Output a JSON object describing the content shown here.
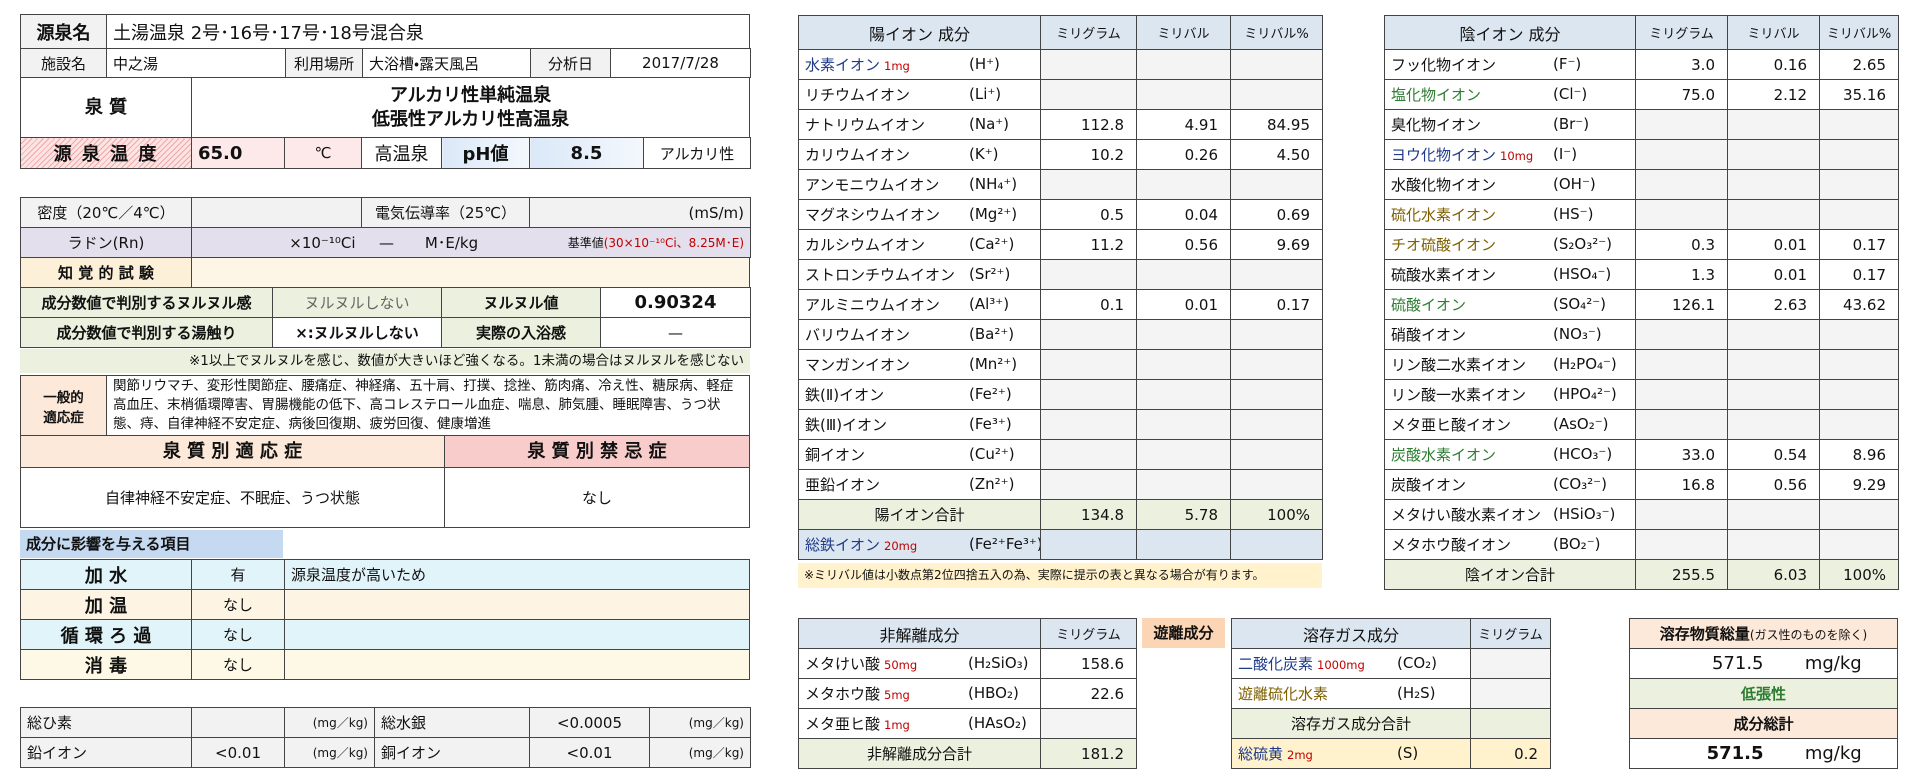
{
  "basic": {
    "source_label": "源泉名",
    "source_name": "土湯温泉 2号･16号･17号･18号混合泉",
    "facility_label": "施設名",
    "facility": "中之湯",
    "use_label": "利用場所",
    "use": "大浴槽・露天風呂",
    "date_label": "分析日",
    "date": "2017/7/28",
    "quality_label": "泉 質",
    "quality": [
      "アルカリ性単純温泉",
      "低張性アルカリ性高温泉"
    ],
    "temp_label": "源 泉 温 度",
    "temp": "65.0",
    "temp_unit": "℃",
    "temp_class": "高温泉",
    "ph_label": "pH値",
    "ph": "8.5",
    "ph_class": "アルカリ性"
  },
  "physical": {
    "density_label": "密度（20℃／4℃）",
    "conductivity_label": "電気伝導率（25℃）",
    "conductivity_unit": "(mS/m)",
    "radon_label": "ラドン(Rn)",
    "radon_unit": "×10⁻¹⁰Ci",
    "radon_value": "—",
    "radon_unit2": "M･E/kg",
    "radon_standard_label": "基準値",
    "radon_standard": "(30×10⁻¹⁰Ci、8.25M･E)",
    "sensory_label": "知 覚 的 試 験",
    "slime_label": "成分数値で判別するヌルヌル感",
    "slime": "ヌルヌルしない",
    "slime_value_label": "ヌルヌル値",
    "slime_value": "0.90324",
    "touch_label": "成分数値で判別する湯触り",
    "touch": "×:ヌルヌルしない",
    "actual_label": "実際の入浴感",
    "actual": "—",
    "note": "※1以上でヌルヌルを感じ、数値が大きいほど強くなる。1未満の場合はヌルヌルを感じない"
  },
  "indications": {
    "general_label": [
      "一般的",
      "適応症"
    ],
    "general": "関節リウマチ、変形性関節症、腰痛症、神経痛、五十肩、打撲、捻挫、筋肉痛、冷え性、糖尿病、軽症高血圧、末梢循環障害、胃腸機能の低下、高コレステロール血症、喘息、肺気腫、睡眠障害、うつ状態、痔、自律神経不安定症、病後回復期、疲労回復、健康増進",
    "specific_label": "泉 質 別 適 応 症",
    "contra_label": "泉 質 別 禁 忌 症",
    "specific": "自律神経不安定症、不眠症、うつ状態",
    "contra": "なし"
  },
  "influence": {
    "title": "成分に影響を与える項目",
    "rows": [
      [
        "加 水",
        "有",
        "源泉温度が高いため"
      ],
      [
        "加 温",
        "なし"
      ],
      [
        "循 環 ろ 過",
        "なし"
      ],
      [
        "消 毒",
        "なし"
      ]
    ]
  },
  "trace": [
    {
      "label": "総ひ素",
      "unit": "(mg／kg)"
    },
    {
      "label": "総水銀",
      "value": "<0.0005",
      "unit": "(mg／kg)"
    },
    {
      "label": "鉛イオン",
      "value": "<0.01",
      "unit": "(mg／kg)"
    },
    {
      "label": "銅イオン",
      "value": "<0.01",
      "unit": "(mg／kg)"
    }
  ],
  "cations": {
    "header": [
      "陽イオン 成分",
      "ミリグラム",
      "ミリバル",
      "ミリバル%"
    ],
    "rows": [
      {
        "name": "水素イオン",
        "note": "1mg",
        "formula": "(H⁺)",
        "color": "#1f3a8a"
      },
      {
        "name": "リチウムイオン",
        "formula": "(Li⁺)"
      },
      {
        "name": "ナトリウムイオン",
        "formula": "(Na⁺)",
        "mg": "112.8",
        "mval": "4.91",
        "pct": "84.95"
      },
      {
        "name": "カリウムイオン",
        "formula": "(K⁺)",
        "mg": "10.2",
        "mval": "0.26",
        "pct": "4.50"
      },
      {
        "name": "アンモニウムイオン",
        "formula": "(NH₄⁺)"
      },
      {
        "name": "マグネシウムイオン",
        "formula": "(Mg²⁺)",
        "mg": "0.5",
        "mval": "0.04",
        "pct": "0.69"
      },
      {
        "name": "カルシウムイオン",
        "formula": "(Ca²⁺)",
        "mg": "11.2",
        "mval": "0.56",
        "pct": "9.69"
      },
      {
        "name": "ストロンチウムイオン",
        "formula": "(Sr²⁺)"
      },
      {
        "name": "アルミニウムイオン",
        "formula": "(Al³⁺)",
        "mg": "0.1",
        "mval": "0.01",
        "pct": "0.17"
      },
      {
        "name": "バリウムイオン",
        "formula": "(Ba²⁺)"
      },
      {
        "name": "マンガンイオン",
        "formula": "(Mn²⁺)"
      },
      {
        "name": "鉄(Ⅱ)イオン",
        "formula": "(Fe²⁺)"
      },
      {
        "name": "鉄(Ⅲ)イオン",
        "formula": "(Fe³⁺)"
      },
      {
        "name": "銅イオン",
        "formula": "(Cu²⁺)"
      },
      {
        "name": "亜鉛イオン",
        "formula": "(Zn²⁺)"
      }
    ],
    "total": {
      "label": "陽イオン合計",
      "mg": "134.8",
      "mval": "5.78",
      "pct": "100%"
    },
    "iron": {
      "name": "総鉄イオン",
      "note": "20mg",
      "formula": "(Fe²⁺Fe³⁺)",
      "color": "#1f3a8a"
    },
    "footnote": "※ミリバル値は小数点第2位四捨五入の為、実際に提示の表と異なる場合が有ります。"
  },
  "anions": {
    "header": [
      "陰イオン 成分",
      "ミリグラム",
      "ミリバル",
      "ミリバル%"
    ],
    "rows": [
      {
        "name": "フッ化物イオン",
        "formula": "(F⁻)",
        "mg": "3.0",
        "mval": "0.16",
        "pct": "2.65"
      },
      {
        "name": "塩化物イオン",
        "formula": "(Cl⁻)",
        "mg": "75.0",
        "mval": "2.12",
        "pct": "35.16",
        "color": "#2e7d32"
      },
      {
        "name": "臭化物イオン",
        "formula": "(Br⁻)"
      },
      {
        "name": "ヨウ化物イオン",
        "note": "10mg",
        "formula": "(I⁻)",
        "color": "#1f3a8a"
      },
      {
        "name": "水酸化物イオン",
        "formula": "(OH⁻)"
      },
      {
        "name": "硫化水素イオン",
        "formula": "(HS⁻)",
        "color": "#7f6000"
      },
      {
        "name": "チオ硫酸イオン",
        "formula": "(S₂O₃²⁻)",
        "mg": "0.3",
        "mval": "0.01",
        "pct": "0.17",
        "color": "#7f6000"
      },
      {
        "name": "硫酸水素イオン",
        "formula": "(HSO₄⁻)",
        "mg": "1.3",
        "mval": "0.01",
        "pct": "0.17"
      },
      {
        "name": "硫酸イオン",
        "formula": "(SO₄²⁻)",
        "mg": "126.1",
        "mval": "2.63",
        "pct": "43.62",
        "color": "#2e7d32"
      },
      {
        "name": "硝酸イオン",
        "formula": "(NO₃⁻)"
      },
      {
        "name": "リン酸二水素イオン",
        "formula": "(H₂PO₄⁻)"
      },
      {
        "name": "リン酸一水素イオン",
        "formula": "(HPO₄²⁻)"
      },
      {
        "name": "メタ亜ヒ酸イオン",
        "formula": "(AsO₂⁻)"
      },
      {
        "name": "炭酸水素イオン",
        "formula": "(HCO₃⁻)",
        "mg": "33.0",
        "mval": "0.54",
        "pct": "8.96",
        "color": "#2e7d32"
      },
      {
        "name": "炭酸イオン",
        "formula": "(CO₃²⁻)",
        "mg": "16.8",
        "mval": "0.56",
        "pct": "9.29"
      },
      {
        "name": "メタけい酸水素イオン",
        "formula": "(HSiO₃⁻)"
      },
      {
        "name": "メタホウ酸イオン",
        "formula": "(BO₂⁻)"
      }
    ],
    "total": {
      "label": "陰イオン合計",
      "mg": "255.5",
      "mval": "6.03",
      "pct": "100%"
    }
  },
  "nondissociated": {
    "header": [
      "非解離成分",
      "ミリグラム"
    ],
    "rows": [
      {
        "name": "メタけい酸",
        "note": "50mg",
        "formula": "(H₂SiO₃)",
        "mg": "158.6"
      },
      {
        "name": "メタホウ酸",
        "note": "5mg",
        "formula": "(HBO₂)",
        "mg": "22.6"
      },
      {
        "name": "メタ亜ヒ酸",
        "note": "1mg",
        "formula": "(HAsO₂)"
      }
    ],
    "total": {
      "label": "非解離成分合計",
      "mg": "181.2"
    }
  },
  "free_label": "遊離成分",
  "gases": {
    "header": [
      "溶存ガス成分",
      "ミリグラム"
    ],
    "rows": [
      {
        "name": "二酸化炭素",
        "note": "1000mg",
        "formula": "(CO₂)",
        "color": "#1f3a8a"
      },
      {
        "name": "遊離硫化水素",
        "formula": "(H₂S)",
        "color": "#7f6000"
      }
    ],
    "total": {
      "label": "溶存ガス成分合計"
    },
    "sulfur": {
      "name": "総硫黄",
      "note": "2mg",
      "formula": "(S)",
      "mg": "0.2",
      "color": "#1f3a8a"
    }
  },
  "summary": {
    "dissolved_label": "溶存物質総量",
    "dissolved_note": "(ガス性のものを除く)",
    "dissolved": "571.5",
    "dissolved_unit": "mg/kg",
    "tonicity": "低張性",
    "total_label": "成分総計",
    "total": "571.5",
    "total_unit": "mg/kg"
  }
}
